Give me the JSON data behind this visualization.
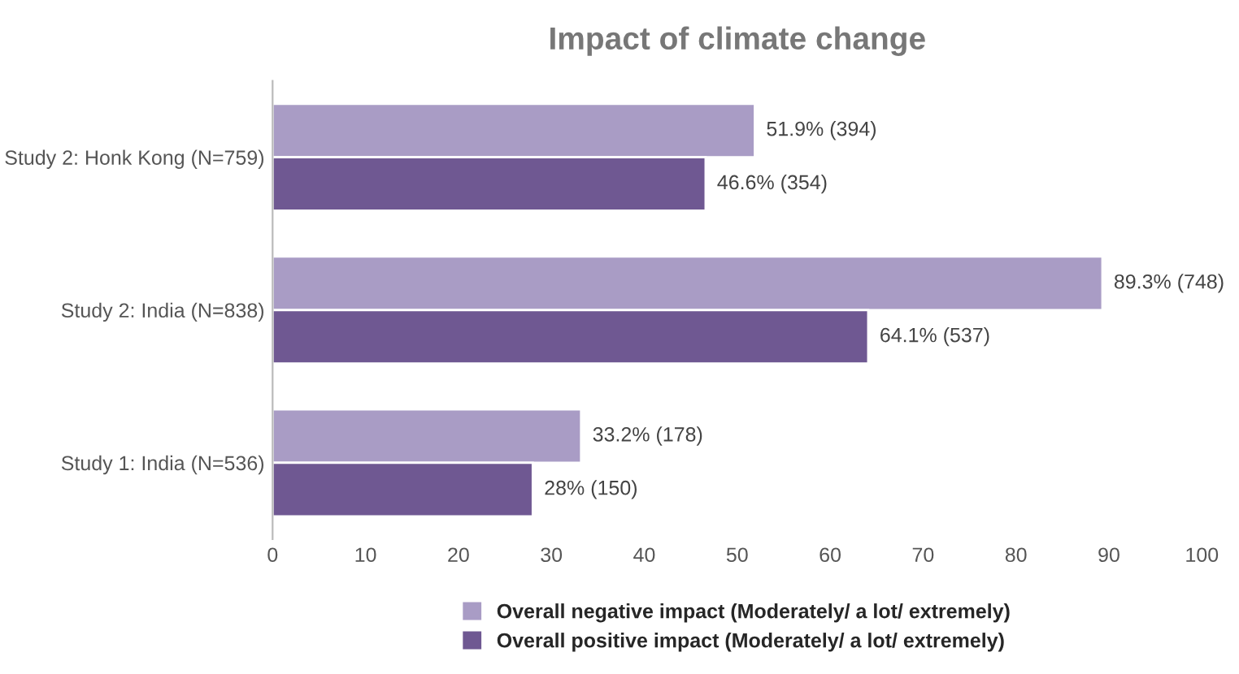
{
  "chart_data": {
    "type": "bar",
    "orientation": "horizontal",
    "title": "Impact of climate change",
    "categories": [
      "Study 2: Honk Kong (N=759)",
      "Study 2: India (N=838)",
      "Study 1: India (N=536)"
    ],
    "series": [
      {
        "name": "Overall negative impact (Moderately/ a lot/ extremely)",
        "color": "#a99cc5",
        "values": [
          51.9,
          89.3,
          33.2
        ],
        "value_labels": [
          "51.9% (394)",
          "89.3% (748)",
          "33.2% (178)"
        ]
      },
      {
        "name": "Overall positive impact (Moderately/ a lot/ extremely)",
        "color": "#6f5892",
        "values": [
          46.6,
          64.1,
          28
        ],
        "value_labels": [
          "46.6% (354)",
          "64.1% (537)",
          "28% (150)"
        ]
      }
    ],
    "xlim": [
      0,
      100
    ],
    "xticks": [
      0,
      10,
      20,
      30,
      40,
      50,
      60,
      70,
      80,
      90,
      100
    ],
    "grid": false,
    "legend": "bottom"
  }
}
